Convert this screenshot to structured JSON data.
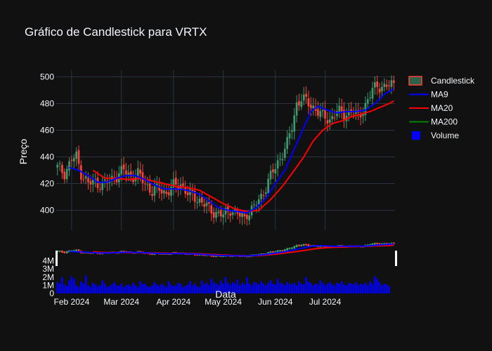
{
  "chart_data": {
    "type": "candlestick",
    "title": "Gráfico de Candlestick para VRTX",
    "ylabel": "Preço",
    "xlabel": "Data",
    "x_ticks": [
      "Feb 2024",
      "Mar 2024",
      "Apr 2024",
      "May 2024",
      "Jun 2024",
      "Jul 2024"
    ],
    "y_ticks_price": [
      400,
      420,
      440,
      460,
      480,
      500
    ],
    "y_ticks_volume": [
      "0",
      "1M",
      "2M",
      "3M",
      "4M"
    ],
    "price_range": [
      385,
      505
    ],
    "volume_range": [
      0,
      5
    ],
    "legend": [
      "Candlestick",
      "MA9",
      "MA20",
      "MA200",
      "Volume"
    ],
    "colors": {
      "increasing": "#3d9970",
      "decreasing": "#ff4136",
      "ma9": "#0000ff",
      "ma20": "#ff0000",
      "ma200": "#008000",
      "volume": "#0000ff",
      "background": "#111111",
      "grid": "#283442"
    },
    "price_path": [
      [
        0,
        432
      ],
      [
        3,
        428
      ],
      [
        6,
        438
      ],
      [
        8,
        440
      ],
      [
        10,
        428
      ],
      [
        13,
        420
      ],
      [
        16,
        421
      ],
      [
        19,
        419
      ],
      [
        22,
        422
      ],
      [
        25,
        426
      ],
      [
        28,
        430
      ],
      [
        31,
        425
      ],
      [
        34,
        427
      ],
      [
        37,
        420
      ],
      [
        40,
        414
      ],
      [
        43,
        416
      ],
      [
        46,
        413
      ],
      [
        49,
        418
      ],
      [
        52,
        420
      ],
      [
        55,
        412
      ],
      [
        58,
        410
      ],
      [
        61,
        406
      ],
      [
        64,
        401
      ],
      [
        67,
        398
      ],
      [
        70,
        396
      ],
      [
        73,
        401
      ],
      [
        76,
        397
      ],
      [
        79,
        394
      ],
      [
        80,
        398
      ],
      [
        83,
        402
      ],
      [
        86,
        410
      ],
      [
        89,
        422
      ],
      [
        92,
        432
      ],
      [
        95,
        443
      ],
      [
        97,
        450
      ],
      [
        99,
        462
      ],
      [
        101,
        480
      ],
      [
        103,
        484
      ],
      [
        106,
        480
      ],
      [
        109,
        476
      ],
      [
        112,
        470
      ],
      [
        115,
        468
      ],
      [
        118,
        474
      ],
      [
        121,
        472
      ],
      [
        124,
        474
      ],
      [
        127,
        470
      ],
      [
        129,
        476
      ],
      [
        131,
        482
      ],
      [
        133,
        490
      ],
      [
        135,
        494
      ],
      [
        138,
        492
      ],
      [
        142,
        495
      ]
    ],
    "ma9_path": [
      [
        5,
        432
      ],
      [
        9,
        430
      ],
      [
        13,
        426
      ],
      [
        17,
        421
      ],
      [
        21,
        421
      ],
      [
        25,
        424
      ],
      [
        29,
        426
      ],
      [
        33,
        426
      ],
      [
        37,
        423
      ],
      [
        41,
        419
      ],
      [
        45,
        416
      ],
      [
        50,
        416
      ],
      [
        55,
        415
      ],
      [
        60,
        412
      ],
      [
        64,
        407
      ],
      [
        68,
        402
      ],
      [
        72,
        400
      ],
      [
        76,
        399
      ],
      [
        80,
        398
      ],
      [
        84,
        402
      ],
      [
        88,
        409
      ],
      [
        92,
        420
      ],
      [
        96,
        430
      ],
      [
        100,
        446
      ],
      [
        104,
        462
      ],
      [
        107,
        474
      ],
      [
        110,
        478
      ],
      [
        114,
        475
      ],
      [
        118,
        473
      ],
      [
        122,
        474
      ],
      [
        126,
        474
      ],
      [
        130,
        475
      ],
      [
        134,
        480
      ],
      [
        138,
        487
      ],
      [
        142,
        491
      ]
    ],
    "ma20_path": [
      [
        15,
        430
      ],
      [
        20,
        424
      ],
      [
        25,
        424
      ],
      [
        30,
        423
      ],
      [
        35,
        424
      ],
      [
        40,
        422
      ],
      [
        45,
        420
      ],
      [
        50,
        418
      ],
      [
        55,
        417
      ],
      [
        60,
        415
      ],
      [
        65,
        410
      ],
      [
        70,
        405
      ],
      [
        75,
        401
      ],
      [
        80,
        399
      ],
      [
        85,
        400
      ],
      [
        90,
        408
      ],
      [
        95,
        418
      ],
      [
        100,
        430
      ],
      [
        104,
        440
      ],
      [
        108,
        452
      ],
      [
        112,
        460
      ],
      [
        116,
        465
      ],
      [
        120,
        467
      ],
      [
        124,
        470
      ],
      [
        128,
        472
      ],
      [
        132,
        474
      ],
      [
        136,
        477
      ],
      [
        140,
        480
      ],
      [
        142,
        482
      ]
    ],
    "volume_values": [
      1.4,
      1.2,
      2.0,
      1.1,
      0.9,
      1.6,
      2.1,
      1.8,
      1.0,
      0.8,
      1.5,
      1.2,
      2.2,
      1.0,
      0.8,
      1.3,
      1.1,
      0.9,
      1.0,
      1.6,
      1.2,
      0.8,
      0.9,
      1.1,
      1.4,
      1.0,
      0.9,
      1.2,
      0.8,
      1.0,
      1.1,
      0.9,
      1.3,
      1.0,
      0.8,
      1.5,
      1.1,
      1.2,
      0.9,
      0.8,
      1.0,
      1.4,
      1.1,
      0.9,
      1.2,
      1.0,
      0.8,
      1.5,
      1.1,
      0.9,
      1.0,
      1.3,
      1.2,
      0.8,
      0.9,
      1.1,
      1.5,
      1.0,
      1.2,
      0.9,
      0.8,
      1.6,
      1.1,
      1.3,
      1.0,
      1.8,
      1.4,
      1.2,
      1.0,
      1.6,
      1.2,
      2.0,
      1.3,
      1.1,
      1.4,
      1.2,
      1.7,
      1.0,
      1.3,
      1.1,
      2.0,
      1.2,
      1.0,
      1.4,
      1.3,
      1.1,
      1.5,
      1.2,
      1.0,
      1.3,
      1.6,
      1.2,
      1.1,
      1.8,
      1.3,
      1.2,
      1.0,
      1.4,
      1.2,
      1.1,
      1.3,
      1.0,
      1.5,
      1.2,
      1.1,
      2.0,
      1.4,
      1.3,
      1.0,
      1.2,
      1.1,
      1.6,
      1.3,
      1.0,
      1.2,
      1.4,
      1.1,
      1.0,
      1.3,
      1.2,
      1.5,
      1.1,
      1.0,
      1.3,
      1.2,
      1.1,
      1.4,
      1.0,
      1.2,
      1.1,
      1.3,
      1.0,
      1.5,
      1.2,
      2.1,
      1.8,
      1.4,
      1.0,
      1.2,
      1.1,
      0.9
    ]
  }
}
